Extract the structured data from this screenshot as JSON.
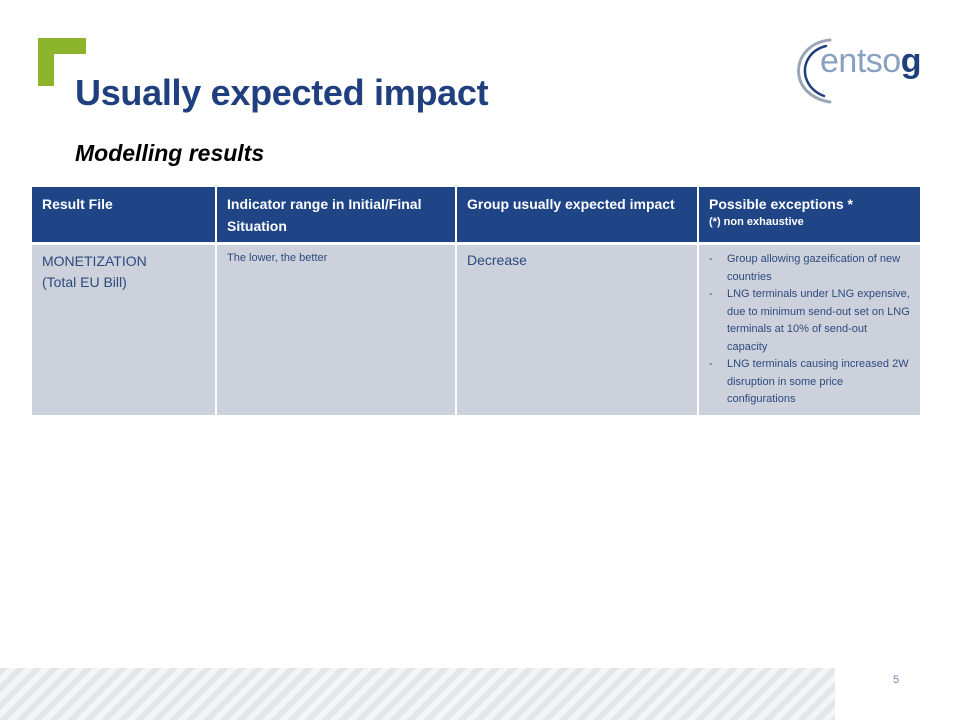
{
  "slide": {
    "title": "Usually expected impact",
    "subtitle": "Modelling  results",
    "page_number": "5",
    "accent_color": "#8db52c",
    "title_color": "#1f3f7f"
  },
  "logo": {
    "text_part1": "ents",
    "text_part2": "o",
    "text_part3": "g"
  },
  "table": {
    "headers": [
      {
        "label": "Result File",
        "note": ""
      },
      {
        "label": "Indicator range in Initial/Final Situation",
        "note": ""
      },
      {
        "label": "Group usually expected impact",
        "note": ""
      },
      {
        "label": "Possible exceptions *",
        "note": "(*) non exhaustive"
      }
    ],
    "rows": [
      {
        "result_file_line1": "MONETIZATION",
        "result_file_line2": "(Total EU Bill)",
        "indicator_range": "The lower, the better",
        "expected_impact": "Decrease",
        "exceptions": [
          "Group allowing gazeification of new countries",
          "LNG terminals under LNG expensive, due to minimum send-out set on LNG terminals at 10% of send-out capacity",
          "LNG terminals causing increased 2W disruption in some price configurations"
        ]
      }
    ]
  }
}
